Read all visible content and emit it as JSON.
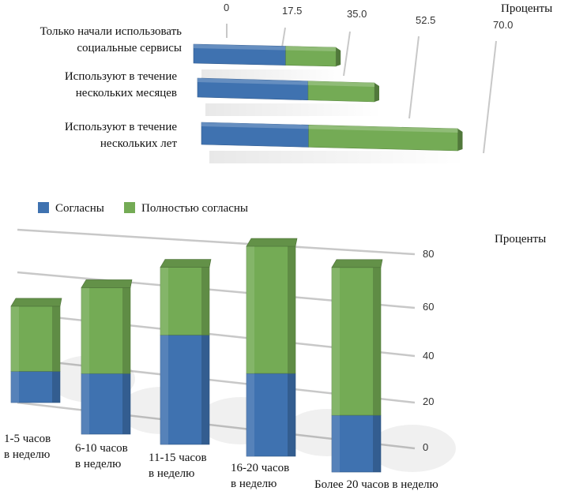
{
  "colors": {
    "agree": "#3f72b0",
    "strongly_agree": "#74ab55",
    "grid": "#c8c8c8"
  },
  "legend": {
    "agree": "Согласны",
    "strongly_agree": "Полностью согласны"
  },
  "chart_data": [
    {
      "type": "bar",
      "orientation": "horizontal",
      "stacked": true,
      "xlabel": "Проценты",
      "xticks": [
        "0",
        "17.5",
        "35.0",
        "52.5",
        "70.0"
      ],
      "xlim": [
        0,
        70
      ],
      "categories": [
        [
          "Только начали использовать",
          "социальные сервисы"
        ],
        [
          "Используют в течение",
          "нескольких месяцев"
        ],
        [
          "Используют в течение",
          "нескольких лет"
        ]
      ],
      "series": [
        {
          "name": "Согласны",
          "values": [
            22,
            25,
            23
          ]
        },
        {
          "name": "Полностью согласны",
          "values": [
            12,
            15,
            32
          ]
        }
      ],
      "legend_position": "bottom-left"
    },
    {
      "type": "bar",
      "orientation": "vertical",
      "stacked": true,
      "ylabel": "Проценты",
      "yticks": [
        "0",
        "20",
        "40",
        "60",
        "80"
      ],
      "ylim": [
        0,
        80
      ],
      "categories": [
        [
          "1-5 часов",
          "в неделю"
        ],
        [
          "6-10 часов",
          "в неделю"
        ],
        [
          "11-15 часов",
          "в неделю"
        ],
        [
          "16-20 часов",
          "в неделю"
        ],
        [
          "Более 20 часов в неделю"
        ]
      ],
      "series": [
        {
          "name": "Согласны",
          "values": [
            12,
            24,
            42,
            30,
            20
          ]
        },
        {
          "name": "Полностью согласны",
          "values": [
            25,
            34,
            26,
            46,
            52
          ]
        }
      ]
    }
  ]
}
